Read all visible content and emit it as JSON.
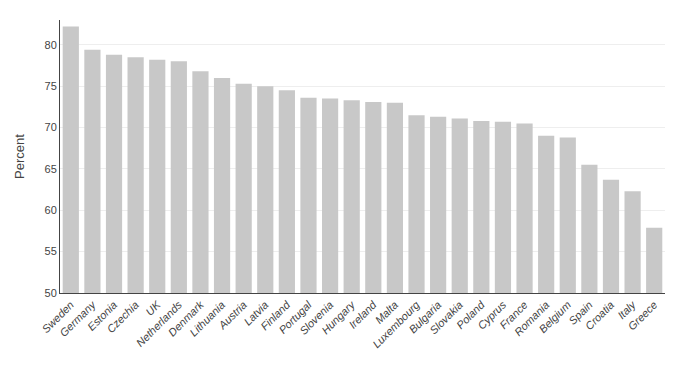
{
  "chart_data": {
    "type": "bar",
    "categories": [
      "Sweden",
      "Germany",
      "Estonia",
      "Czechia",
      "UK",
      "Netherlands",
      "Denmark",
      "Lithuania",
      "Austria",
      "Latvia",
      "Finland",
      "Portugal",
      "Slovenia",
      "Hungary",
      "Ireland",
      "Malta",
      "Luxembourg",
      "Bulgaria",
      "Slovakia",
      "Poland",
      "Cyprus",
      "France",
      "Romania",
      "Belgium",
      "Spain",
      "Croatia",
      "Italy",
      "Greece"
    ],
    "values": [
      82.2,
      79.4,
      78.8,
      78.5,
      78.2,
      78.0,
      76.8,
      76.0,
      75.3,
      75.0,
      74.5,
      73.6,
      73.5,
      73.3,
      73.1,
      73.0,
      71.5,
      71.3,
      71.1,
      70.8,
      70.7,
      70.5,
      69.0,
      68.8,
      65.5,
      63.7,
      62.3,
      57.9
    ],
    "color": "#c8c8c8",
    "ylabel": "Percent",
    "ylim": [
      50,
      83
    ],
    "yticks": [
      50,
      55,
      60,
      65,
      70,
      75,
      80
    ],
    "grid": true
  }
}
